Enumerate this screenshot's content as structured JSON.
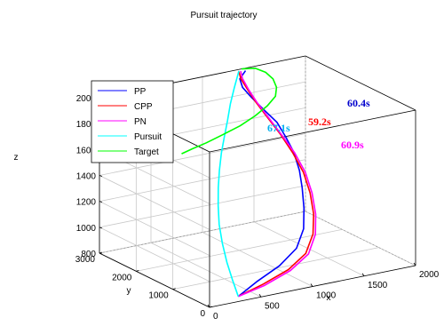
{
  "chart_data": {
    "type": "line3d",
    "title": "Pursuit trajectory",
    "xlabel": "x",
    "ylabel": "y",
    "zlabel": "z",
    "xlim": [
      0,
      2000
    ],
    "ylim": [
      0,
      3000
    ],
    "zlim": [
      800,
      2000
    ],
    "xticks": [
      0,
      500,
      1000,
      1500,
      2000
    ],
    "yticks": [
      0,
      1000,
      2000,
      3000
    ],
    "zticks": [
      800,
      1000,
      1200,
      1400,
      1600,
      1800,
      2000
    ],
    "grid": true,
    "legend_position": "top-left",
    "series": [
      {
        "name": "PP",
        "color": "#0000ff",
        "x": [
          350,
          500,
          700,
          880,
          1020,
          1130,
          1220,
          1300,
          1370,
          1400,
          1420,
          1380,
          1340,
          1310,
          1320,
          1400
        ],
        "y": [
          200,
          120,
          60,
          100,
          300,
          600,
          900,
          1200,
          1550,
          1850,
          2150,
          2400,
          2620,
          2780,
          2880,
          2950
        ],
        "z": [
          800,
          900,
          1000,
          1100,
          1200,
          1300,
          1400,
          1480,
          1560,
          1630,
          1700,
          1770,
          1840,
          1900,
          1950,
          1990
        ]
      },
      {
        "name": "CPP",
        "color": "#ff0000",
        "x": [
          350,
          550,
          780,
          980,
          1140,
          1260,
          1350,
          1410,
          1430,
          1420,
          1390,
          1360,
          1340,
          1330,
          1340
        ],
        "y": [
          200,
          80,
          40,
          130,
          380,
          700,
          1050,
          1400,
          1750,
          2050,
          2330,
          2560,
          2740,
          2880,
          2960
        ],
        "z": [
          800,
          880,
          960,
          1040,
          1130,
          1220,
          1320,
          1420,
          1520,
          1620,
          1720,
          1810,
          1890,
          1950,
          1990
        ]
      },
      {
        "name": "PN",
        "color": "#ff00ff",
        "x": [
          350,
          560,
          800,
          1010,
          1170,
          1290,
          1380,
          1440,
          1460,
          1440,
          1410,
          1380,
          1360,
          1350,
          1360
        ],
        "y": [
          200,
          70,
          40,
          140,
          400,
          730,
          1080,
          1430,
          1780,
          2080,
          2350,
          2580,
          2760,
          2890,
          2970
        ],
        "z": [
          800,
          870,
          950,
          1030,
          1120,
          1210,
          1310,
          1410,
          1510,
          1610,
          1710,
          1800,
          1880,
          1945,
          1990
        ]
      },
      {
        "name": "Pursuit",
        "color": "#00ffff",
        "x": [
          350,
          400,
          460,
          530,
          610,
          700,
          790,
          880,
          970,
          1060,
          1140,
          1210,
          1280,
          1350
        ],
        "y": [
          200,
          500,
          820,
          1140,
          1450,
          1730,
          1980,
          2200,
          2400,
          2570,
          2710,
          2830,
          2920,
          2990
        ],
        "z": [
          800,
          880,
          960,
          1050,
          1140,
          1230,
          1320,
          1410,
          1500,
          1590,
          1680,
          1780,
          1880,
          1990
        ]
      },
      {
        "name": "Target",
        "color": "#00ff00",
        "x": [
          1380,
          1500,
          1570,
          1600,
          1580,
          1520,
          1400,
          1250,
          1080,
          900,
          720,
          580,
          470
        ],
        "y": [
          3000,
          2970,
          2880,
          2760,
          2610,
          2470,
          2360,
          2270,
          2200,
          2150,
          2110,
          2090,
          2080
        ],
        "z": [
          2000,
          1990,
          1960,
          1920,
          1880,
          1840,
          1800,
          1760,
          1720,
          1690,
          1660,
          1640,
          1620
        ]
      }
    ],
    "annotations": [
      {
        "text": "60.4s",
        "color": "#0000cd"
      },
      {
        "text": "59.2s",
        "color": "#ff0000"
      },
      {
        "text": "67.1s",
        "color": "#00b0f0"
      },
      {
        "text": "60.9s",
        "color": "#ff00ff"
      }
    ]
  }
}
